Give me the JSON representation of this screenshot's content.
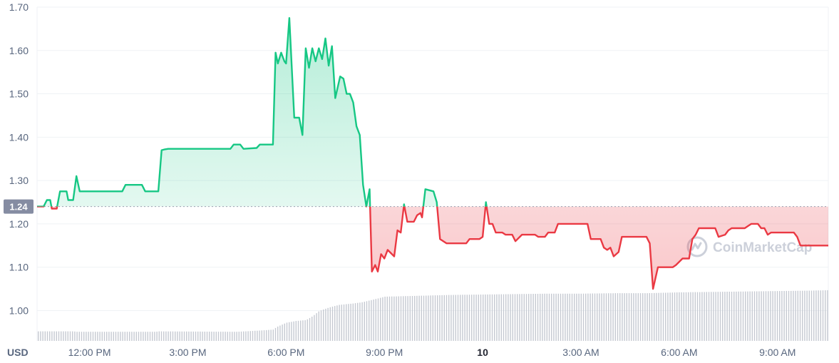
{
  "chart_data": {
    "type": "line",
    "unit": "USD",
    "ylim": [
      0.93,
      1.7
    ],
    "y_ticks": [
      1.0,
      1.1,
      1.2,
      1.3,
      1.4,
      1.5,
      1.6,
      1.7
    ],
    "y_tick_labels": [
      "1.00",
      "1.10",
      "1.20",
      "1.30",
      "1.40",
      "1.50",
      "1.60",
      "1.70"
    ],
    "xlim": [
      10.4,
      34.55
    ],
    "x_ticks": [
      {
        "x": 12,
        "label": "12:00 PM",
        "bold": false
      },
      {
        "x": 15,
        "label": "3:00 PM",
        "bold": false
      },
      {
        "x": 18,
        "label": "6:00 PM",
        "bold": false
      },
      {
        "x": 21,
        "label": "9:00 PM",
        "bold": false
      },
      {
        "x": 24,
        "label": "10",
        "bold": true
      },
      {
        "x": 27,
        "label": "3:00 AM",
        "bold": false
      },
      {
        "x": 30,
        "label": "6:00 AM",
        "bold": false
      },
      {
        "x": 33,
        "label": "9:00 AM",
        "bold": false
      }
    ],
    "baseline": {
      "value": 1.24,
      "label": "1.24"
    },
    "grid": true,
    "colors": {
      "up": "#16c784",
      "down": "#ea3943",
      "volume": "#c5c9d1",
      "badge": "#858ca2",
      "grid": "#eff2f5"
    },
    "price": [
      [
        10.4,
        1.24
      ],
      [
        10.6,
        1.24
      ],
      [
        10.7,
        1.255
      ],
      [
        10.8,
        1.255
      ],
      [
        10.85,
        1.235
      ],
      [
        11.0,
        1.235
      ],
      [
        11.1,
        1.275
      ],
      [
        11.3,
        1.275
      ],
      [
        11.35,
        1.255
      ],
      [
        11.5,
        1.255
      ],
      [
        11.6,
        1.31
      ],
      [
        11.7,
        1.275
      ],
      [
        13.0,
        1.275
      ],
      [
        13.1,
        1.29
      ],
      [
        13.6,
        1.29
      ],
      [
        13.7,
        1.275
      ],
      [
        14.1,
        1.275
      ],
      [
        14.2,
        1.37
      ],
      [
        14.3,
        1.372
      ],
      [
        14.4,
        1.373
      ],
      [
        15.5,
        1.373
      ],
      [
        16.3,
        1.373
      ],
      [
        16.4,
        1.383
      ],
      [
        16.6,
        1.383
      ],
      [
        16.7,
        1.373
      ],
      [
        17.1,
        1.375
      ],
      [
        17.2,
        1.383
      ],
      [
        17.6,
        1.383
      ],
      [
        17.68,
        1.595
      ],
      [
        17.75,
        1.57
      ],
      [
        17.85,
        1.595
      ],
      [
        17.95,
        1.575
      ],
      [
        18.0,
        1.57
      ],
      [
        18.1,
        1.675
      ],
      [
        18.25,
        1.445
      ],
      [
        18.4,
        1.445
      ],
      [
        18.5,
        1.405
      ],
      [
        18.6,
        1.605
      ],
      [
        18.7,
        1.56
      ],
      [
        18.8,
        1.605
      ],
      [
        18.9,
        1.575
      ],
      [
        19.0,
        1.605
      ],
      [
        19.1,
        1.58
      ],
      [
        19.2,
        1.628
      ],
      [
        19.3,
        1.565
      ],
      [
        19.4,
        1.61
      ],
      [
        19.5,
        1.49
      ],
      [
        19.65,
        1.54
      ],
      [
        19.75,
        1.535
      ],
      [
        19.85,
        1.5
      ],
      [
        19.95,
        1.5
      ],
      [
        20.05,
        1.48
      ],
      [
        20.15,
        1.425
      ],
      [
        20.25,
        1.405
      ],
      [
        20.35,
        1.29
      ],
      [
        20.45,
        1.24
      ],
      [
        20.55,
        1.28
      ],
      [
        20.62,
        1.09
      ],
      [
        20.72,
        1.105
      ],
      [
        20.8,
        1.09
      ],
      [
        20.9,
        1.13
      ],
      [
        21.0,
        1.12
      ],
      [
        21.1,
        1.14
      ],
      [
        21.3,
        1.125
      ],
      [
        21.4,
        1.185
      ],
      [
        21.5,
        1.18
      ],
      [
        21.6,
        1.245
      ],
      [
        21.7,
        1.205
      ],
      [
        21.9,
        1.205
      ],
      [
        22.0,
        1.22
      ],
      [
        22.1,
        1.225
      ],
      [
        22.15,
        1.215
      ],
      [
        22.25,
        1.28
      ],
      [
        22.5,
        1.275
      ],
      [
        22.6,
        1.25
      ],
      [
        22.7,
        1.165
      ],
      [
        22.9,
        1.155
      ],
      [
        23.5,
        1.155
      ],
      [
        23.6,
        1.165
      ],
      [
        23.9,
        1.165
      ],
      [
        24.0,
        1.17
      ],
      [
        24.1,
        1.25
      ],
      [
        24.2,
        1.2
      ],
      [
        24.3,
        1.2
      ],
      [
        24.4,
        1.18
      ],
      [
        24.6,
        1.18
      ],
      [
        24.7,
        1.175
      ],
      [
        24.9,
        1.175
      ],
      [
        25.0,
        1.16
      ],
      [
        25.2,
        1.175
      ],
      [
        25.6,
        1.175
      ],
      [
        25.7,
        1.17
      ],
      [
        25.9,
        1.17
      ],
      [
        26.0,
        1.18
      ],
      [
        26.2,
        1.18
      ],
      [
        26.3,
        1.2
      ],
      [
        27.2,
        1.2
      ],
      [
        27.3,
        1.165
      ],
      [
        27.6,
        1.165
      ],
      [
        27.7,
        1.145
      ],
      [
        27.8,
        1.14
      ],
      [
        27.9,
        1.145
      ],
      [
        28.0,
        1.125
      ],
      [
        28.15,
        1.135
      ],
      [
        28.25,
        1.17
      ],
      [
        29.0,
        1.17
      ],
      [
        29.1,
        1.155
      ],
      [
        29.2,
        1.05
      ],
      [
        29.35,
        1.1
      ],
      [
        29.8,
        1.1
      ],
      [
        29.9,
        1.105
      ],
      [
        30.1,
        1.12
      ],
      [
        30.3,
        1.12
      ],
      [
        30.4,
        1.165
      ],
      [
        30.5,
        1.175
      ],
      [
        30.6,
        1.19
      ],
      [
        31.1,
        1.19
      ],
      [
        31.2,
        1.17
      ],
      [
        31.4,
        1.175
      ],
      [
        31.5,
        1.185
      ],
      [
        31.6,
        1.19
      ],
      [
        32.0,
        1.19
      ],
      [
        32.1,
        1.195
      ],
      [
        32.2,
        1.2
      ],
      [
        32.4,
        1.2
      ],
      [
        32.5,
        1.19
      ],
      [
        32.6,
        1.19
      ],
      [
        32.7,
        1.175
      ],
      [
        32.8,
        1.18
      ],
      [
        32.9,
        1.18
      ],
      [
        33.5,
        1.18
      ],
      [
        33.6,
        1.17
      ],
      [
        33.7,
        1.15
      ],
      [
        34.55,
        1.15
      ]
    ],
    "volume_top": [
      [
        10.4,
        0.952
      ],
      [
        11.5,
        0.952
      ],
      [
        11.6,
        0.951
      ],
      [
        14.0,
        0.951
      ],
      [
        14.1,
        0.952
      ],
      [
        16.5,
        0.951
      ],
      [
        17.2,
        0.954
      ],
      [
        17.6,
        0.956
      ],
      [
        17.7,
        0.962
      ],
      [
        18.0,
        0.972
      ],
      [
        18.3,
        0.976
      ],
      [
        18.6,
        0.978
      ],
      [
        18.8,
        0.987
      ],
      [
        19.0,
        0.999
      ],
      [
        19.3,
        1.007
      ],
      [
        19.6,
        1.013
      ],
      [
        20.0,
        1.016
      ],
      [
        20.3,
        1.019
      ],
      [
        20.8,
        1.028
      ],
      [
        21.0,
        1.032
      ],
      [
        21.5,
        1.033
      ],
      [
        22.0,
        1.034
      ],
      [
        23.0,
        1.036
      ],
      [
        24.0,
        1.037
      ],
      [
        25.0,
        1.038
      ],
      [
        26.0,
        1.039
      ],
      [
        27.0,
        1.039
      ],
      [
        28.0,
        1.04
      ],
      [
        29.0,
        1.04
      ],
      [
        30.0,
        1.042
      ],
      [
        31.0,
        1.043
      ],
      [
        32.0,
        1.044
      ],
      [
        33.0,
        1.045
      ],
      [
        34.0,
        1.046
      ],
      [
        34.55,
        1.047
      ]
    ]
  },
  "watermark": {
    "text": "CoinMarketCap",
    "icon": "coinmarketcap-logo-icon"
  }
}
